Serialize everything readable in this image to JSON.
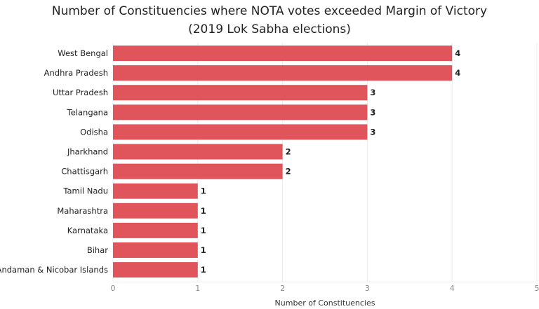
{
  "chart_data": {
    "type": "bar",
    "orientation": "horizontal",
    "title": "Number of Constituencies where NOTA votes exceeded Margin of Victory",
    "subtitle": "(2019 Lok Sabha elections)",
    "xlabel": "Number of Constituencies",
    "ylabel": "",
    "categories": [
      "West Bengal",
      "Andhra Pradesh",
      "Uttar Pradesh",
      "Telangana",
      "Odisha",
      "Jharkhand",
      "Chattisgarh",
      "Tamil Nadu",
      "Maharashtra",
      "Karnataka",
      "Bihar",
      "Andaman & Nicobar Islands"
    ],
    "values": [
      4,
      4,
      3,
      3,
      3,
      2,
      2,
      1,
      1,
      1,
      1,
      1
    ],
    "xlim": [
      0,
      5
    ],
    "xticks": [
      "0",
      "1",
      "2",
      "3",
      "4",
      "5"
    ],
    "grid": true,
    "bar_color": "#e0555b",
    "data_labels": true
  }
}
